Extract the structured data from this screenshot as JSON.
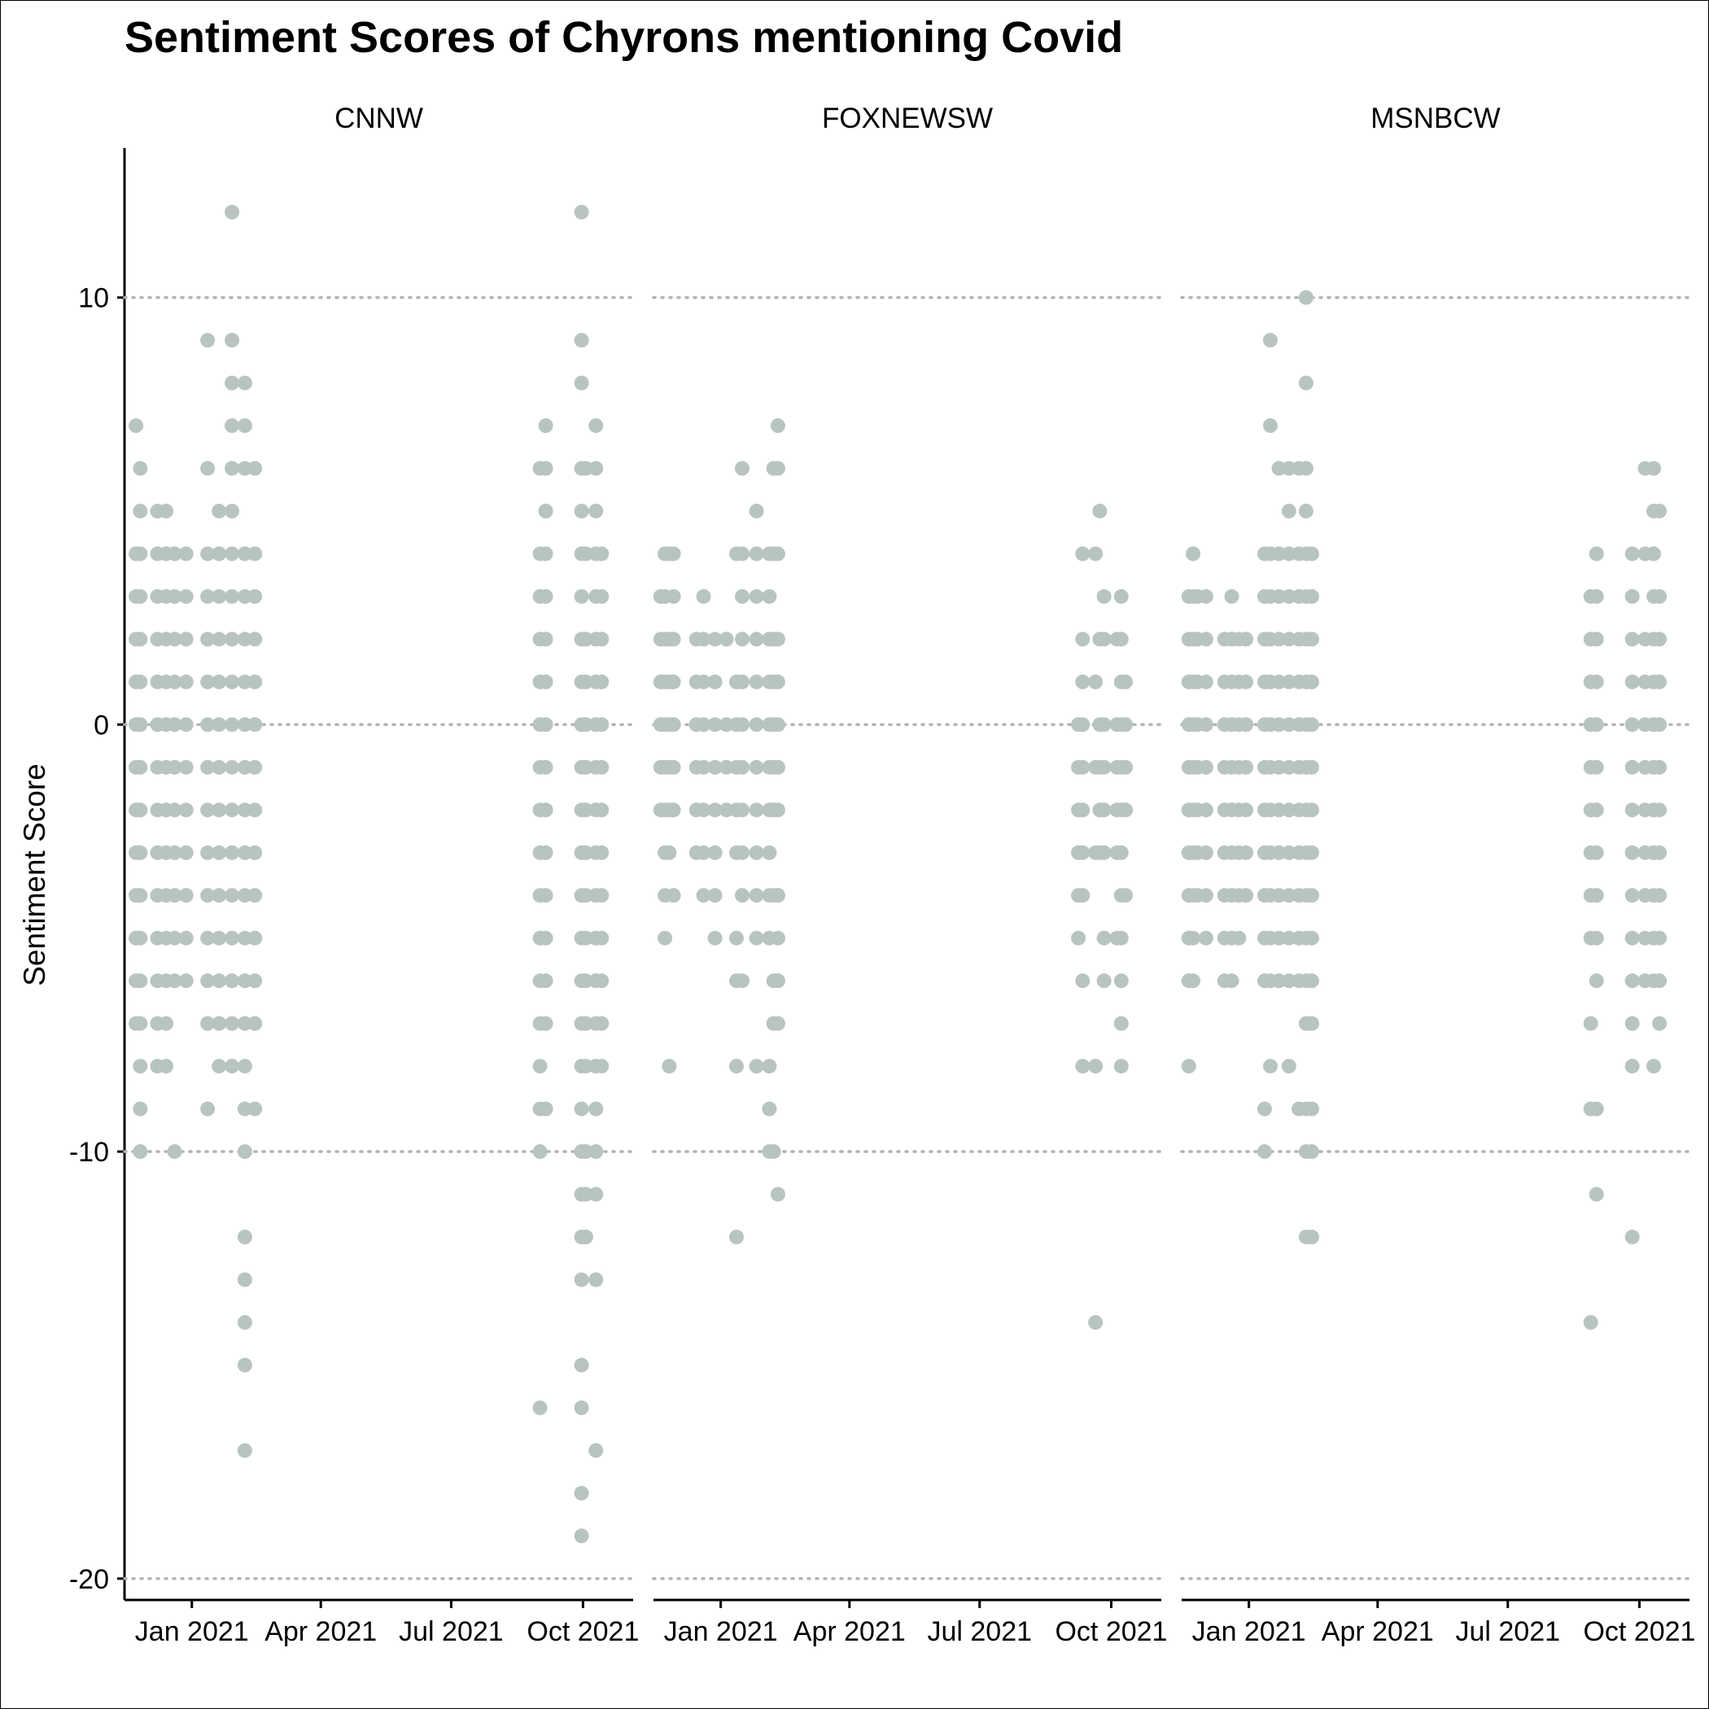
{
  "chart_data": {
    "type": "scatter",
    "title": "Sentiment Scores of Chyrons mentioning Covid",
    "xlabel": "",
    "ylabel": "Sentiment Score",
    "ylim": [
      -20.5,
      13.5
    ],
    "y_ticks": [
      -20,
      -10,
      0,
      10
    ],
    "y_tick_labels": [
      "-20",
      "-10",
      "0",
      "10"
    ],
    "x_range": [
      "2020-11-15",
      "2021-11-05"
    ],
    "x_ticks": [
      "2021-01-01",
      "2021-04-01",
      "2021-07-01",
      "2021-10-01"
    ],
    "x_tick_labels": [
      "Jan 2021",
      "Apr 2021",
      "Jul 2021",
      "Oct 2021"
    ],
    "grid": "major y, dotted",
    "point_color": "#b8c4c2",
    "facets": [
      {
        "name": "CNNW",
        "groups": [
          {
            "x": "2020-11-23",
            "y": [
              7,
              4,
              3,
              2,
              1,
              0,
              -1,
              -2,
              -3,
              -4,
              -5,
              -6,
              -7
            ]
          },
          {
            "x": "2020-11-26",
            "y": [
              6,
              5,
              4,
              3,
              2,
              1,
              0,
              -1,
              -2,
              -3,
              -4,
              -5,
              -6,
              -7,
              -8,
              -9,
              -10
            ]
          },
          {
            "x": "2020-12-08",
            "y": [
              5,
              4,
              3,
              2,
              1,
              0,
              -1,
              -2,
              -3,
              -4,
              -5,
              -6,
              -7,
              -8
            ]
          },
          {
            "x": "2020-12-14",
            "y": [
              5,
              4,
              3,
              2,
              1,
              0,
              -1,
              -2,
              -3,
              -4,
              -5,
              -6,
              -7,
              -8
            ]
          },
          {
            "x": "2020-12-20",
            "y": [
              4,
              3,
              2,
              1,
              0,
              -1,
              -2,
              -3,
              -4,
              -5,
              -6,
              -10
            ]
          },
          {
            "x": "2020-12-28",
            "y": [
              4,
              3,
              2,
              1,
              0,
              -1,
              -2,
              -3,
              -4,
              -5,
              -6
            ]
          },
          {
            "x": "2021-01-12",
            "y": [
              9,
              6,
              4,
              3,
              2,
              1,
              0,
              -1,
              -2,
              -3,
              -4,
              -5,
              -6,
              -7,
              -9
            ]
          },
          {
            "x": "2021-01-20",
            "y": [
              5,
              4,
              3,
              2,
              1,
              0,
              -1,
              -2,
              -3,
              -4,
              -5,
              -6,
              -7,
              -8
            ]
          },
          {
            "x": "2021-01-29",
            "y": [
              12,
              9,
              8,
              7,
              6,
              5,
              4,
              3,
              2,
              1,
              0,
              -1,
              -2,
              -3,
              -4,
              -5,
              -6,
              -7,
              -8
            ]
          },
          {
            "x": "2021-02-07",
            "y": [
              8,
              7,
              6,
              4,
              3,
              2,
              1,
              0,
              -1,
              -2,
              -3,
              -4,
              -5,
              -6,
              -7,
              -8,
              -9,
              -10,
              -12,
              -13,
              -14,
              -15,
              -17
            ]
          },
          {
            "x": "2021-02-14",
            "y": [
              6,
              4,
              3,
              2,
              1,
              0,
              -1,
              -2,
              -3,
              -4,
              -5,
              -6,
              -7,
              -9
            ]
          },
          {
            "x": "2021-09-01",
            "y": [
              6,
              4,
              3,
              2,
              1,
              0,
              -1,
              -2,
              -3,
              -4,
              -5,
              -6,
              -7,
              -8,
              -9,
              -10,
              -16
            ]
          },
          {
            "x": "2021-09-05",
            "y": [
              7,
              6,
              5,
              4,
              3,
              2,
              1,
              0,
              -1,
              -2,
              -3,
              -4,
              -5,
              -6,
              -7,
              -9
            ]
          },
          {
            "x": "2021-09-30",
            "y": [
              12,
              9,
              8,
              6,
              5,
              4,
              3,
              2,
              1,
              0,
              -1,
              -2,
              -3,
              -4,
              -5,
              -6,
              -7,
              -8,
              -9,
              -10,
              -11,
              -12,
              -13,
              -15,
              -16,
              -18,
              -19
            ]
          },
          {
            "x": "2021-10-03",
            "y": [
              6,
              4,
              2,
              1,
              0,
              -1,
              -2,
              -3,
              -4,
              -5,
              -6,
              -7,
              -8,
              -10,
              -11,
              -12
            ]
          },
          {
            "x": "2021-10-10",
            "y": [
              7,
              6,
              5,
              4,
              3,
              2,
              1,
              0,
              -1,
              -2,
              -3,
              -4,
              -5,
              -6,
              -7,
              -8,
              -9,
              -10,
              -11,
              -13,
              -17
            ]
          },
          {
            "x": "2021-10-14",
            "y": [
              4,
              3,
              2,
              1,
              0,
              -1,
              -2,
              -3,
              -4,
              -5,
              -6,
              -7,
              -8
            ]
          }
        ]
      },
      {
        "name": "FOXNEWSW",
        "groups": [
          {
            "x": "2020-11-20",
            "y": [
              3,
              2,
              1,
              0,
              -1,
              -2
            ]
          },
          {
            "x": "2020-11-23",
            "y": [
              4,
              3,
              2,
              1,
              0,
              -1,
              -2,
              -3,
              -4,
              -5
            ]
          },
          {
            "x": "2020-11-26",
            "y": [
              4,
              2,
              1,
              0,
              -1,
              -2,
              -3,
              -8
            ]
          },
          {
            "x": "2020-11-29",
            "y": [
              4,
              3,
              2,
              1,
              0,
              -1,
              -2,
              -4
            ]
          },
          {
            "x": "2020-12-15",
            "y": [
              2,
              1,
              0,
              -1,
              -2,
              -3
            ]
          },
          {
            "x": "2020-12-20",
            "y": [
              3,
              2,
              1,
              0,
              -1,
              -2,
              -3,
              -4
            ]
          },
          {
            "x": "2020-12-28",
            "y": [
              2,
              1,
              0,
              -1,
              -2,
              -3,
              -4,
              -5
            ]
          },
          {
            "x": "2021-01-05",
            "y": [
              2,
              0,
              -1,
              -2
            ]
          },
          {
            "x": "2021-01-12",
            "y": [
              4,
              1,
              0,
              -1,
              -2,
              -3,
              -5,
              -6,
              -8,
              -12
            ]
          },
          {
            "x": "2021-01-16",
            "y": [
              6,
              4,
              3,
              2,
              1,
              0,
              -1,
              -2,
              -3,
              -4,
              -6
            ]
          },
          {
            "x": "2021-01-26",
            "y": [
              5,
              4,
              3,
              2,
              1,
              0,
              -1,
              -2,
              -3,
              -4,
              -5,
              -8
            ]
          },
          {
            "x": "2021-02-04",
            "y": [
              4,
              3,
              2,
              1,
              0,
              -1,
              -2,
              -3,
              -4,
              -5,
              -8,
              -9,
              -10
            ]
          },
          {
            "x": "2021-02-07",
            "y": [
              6,
              4,
              2,
              1,
              0,
              -1,
              -2,
              -4,
              -6,
              -7,
              -10
            ]
          },
          {
            "x": "2021-02-10",
            "y": [
              7,
              6,
              4,
              2,
              1,
              0,
              -1,
              -2,
              -4,
              -5,
              -6,
              -7,
              -11
            ]
          },
          {
            "x": "2021-09-08",
            "y": [
              0,
              -1,
              -2,
              -3,
              -4,
              -5
            ]
          },
          {
            "x": "2021-09-11",
            "y": [
              4,
              2,
              1,
              0,
              -1,
              -2,
              -3,
              -4,
              -6,
              -8
            ]
          },
          {
            "x": "2021-09-20",
            "y": [
              4,
              1,
              -1,
              -3,
              -8,
              -14
            ]
          },
          {
            "x": "2021-09-23",
            "y": [
              5,
              2,
              0,
              -1,
              -2,
              -3
            ]
          },
          {
            "x": "2021-09-26",
            "y": [
              3,
              2,
              0,
              -1,
              -2,
              -3,
              -5,
              -6
            ]
          },
          {
            "x": "2021-10-05",
            "y": [
              2,
              0,
              -1,
              -2,
              -3,
              -5
            ]
          },
          {
            "x": "2021-10-08",
            "y": [
              3,
              2,
              1,
              0,
              -1,
              -2,
              -3,
              -4,
              -5,
              -6,
              -7,
              -8
            ]
          },
          {
            "x": "2021-10-11",
            "y": [
              1,
              0,
              -1,
              -2,
              -4
            ]
          }
        ]
      },
      {
        "name": "MSNBCW",
        "groups": [
          {
            "x": "2020-11-20",
            "y": [
              3,
              2,
              1,
              0,
              -1,
              -2,
              -3,
              -4,
              -5,
              -6,
              -8
            ]
          },
          {
            "x": "2020-11-23",
            "y": [
              4,
              3,
              2,
              1,
              0,
              -1,
              -2,
              -3,
              -4,
              -5,
              -6
            ]
          },
          {
            "x": "2020-11-26",
            "y": [
              3,
              2,
              1,
              0,
              -1,
              -2,
              -3,
              -4
            ]
          },
          {
            "x": "2020-12-02",
            "y": [
              3,
              2,
              1,
              0,
              -1,
              -2,
              -3,
              -4,
              -5
            ]
          },
          {
            "x": "2020-12-15",
            "y": [
              2,
              1,
              0,
              -1,
              -2,
              -3,
              -4,
              -5,
              -6
            ]
          },
          {
            "x": "2020-12-20",
            "y": [
              3,
              2,
              1,
              0,
              -1,
              -2,
              -3,
              -4,
              -5,
              -6
            ]
          },
          {
            "x": "2020-12-25",
            "y": [
              2,
              1,
              0,
              -1,
              -2,
              -3,
              -4,
              -5
            ]
          },
          {
            "x": "2020-12-30",
            "y": [
              2,
              1,
              0,
              -1,
              -2,
              -3,
              -4
            ]
          },
          {
            "x": "2021-01-12",
            "y": [
              4,
              3,
              2,
              1,
              0,
              -1,
              -2,
              -3,
              -4,
              -5,
              -6,
              -9,
              -10
            ]
          },
          {
            "x": "2021-01-16",
            "y": [
              9,
              7,
              4,
              3,
              2,
              1,
              0,
              -1,
              -2,
              -3,
              -4,
              -5,
              -6,
              -8
            ]
          },
          {
            "x": "2021-01-22",
            "y": [
              6,
              4,
              3,
              2,
              1,
              0,
              -1,
              -2,
              -3,
              -4,
              -5,
              -6
            ]
          },
          {
            "x": "2021-01-29",
            "y": [
              6,
              5,
              4,
              3,
              2,
              1,
              0,
              -1,
              -2,
              -3,
              -4,
              -5,
              -6,
              -8
            ]
          },
          {
            "x": "2021-02-05",
            "y": [
              6,
              4,
              3,
              2,
              1,
              0,
              -1,
              -2,
              -3,
              -4,
              -5,
              -6,
              -9
            ]
          },
          {
            "x": "2021-02-10",
            "y": [
              10,
              8,
              6,
              5,
              4,
              3,
              2,
              1,
              0,
              -1,
              -2,
              -3,
              -4,
              -5,
              -6,
              -7,
              -9,
              -10,
              -12
            ]
          },
          {
            "x": "2021-02-14",
            "y": [
              4,
              3,
              2,
              1,
              0,
              -1,
              -2,
              -3,
              -4,
              -5,
              -6,
              -7,
              -9,
              -10,
              -12
            ]
          },
          {
            "x": "2021-08-28",
            "y": [
              3,
              2,
              1,
              0,
              -1,
              -2,
              -3,
              -4,
              -5,
              -7,
              -9,
              -14
            ]
          },
          {
            "x": "2021-09-01",
            "y": [
              4,
              3,
              2,
              1,
              0,
              -1,
              -2,
              -3,
              -4,
              -5,
              -6,
              -9,
              -11
            ]
          },
          {
            "x": "2021-09-26",
            "y": [
              4,
              3,
              2,
              1,
              0,
              -1,
              -2,
              -3,
              -4,
              -5,
              -6,
              -7,
              -8,
              -12
            ]
          },
          {
            "x": "2021-10-05",
            "y": [
              6,
              4,
              2,
              1,
              0,
              -1,
              -2,
              -3,
              -4,
              -5,
              -6
            ]
          },
          {
            "x": "2021-10-11",
            "y": [
              6,
              5,
              4,
              3,
              2,
              1,
              0,
              -1,
              -2,
              -3,
              -4,
              -5,
              -6,
              -8
            ]
          },
          {
            "x": "2021-10-15",
            "y": [
              5,
              3,
              2,
              1,
              0,
              -1,
              -2,
              -3,
              -4,
              -5,
              -6,
              -7
            ]
          }
        ]
      }
    ]
  }
}
